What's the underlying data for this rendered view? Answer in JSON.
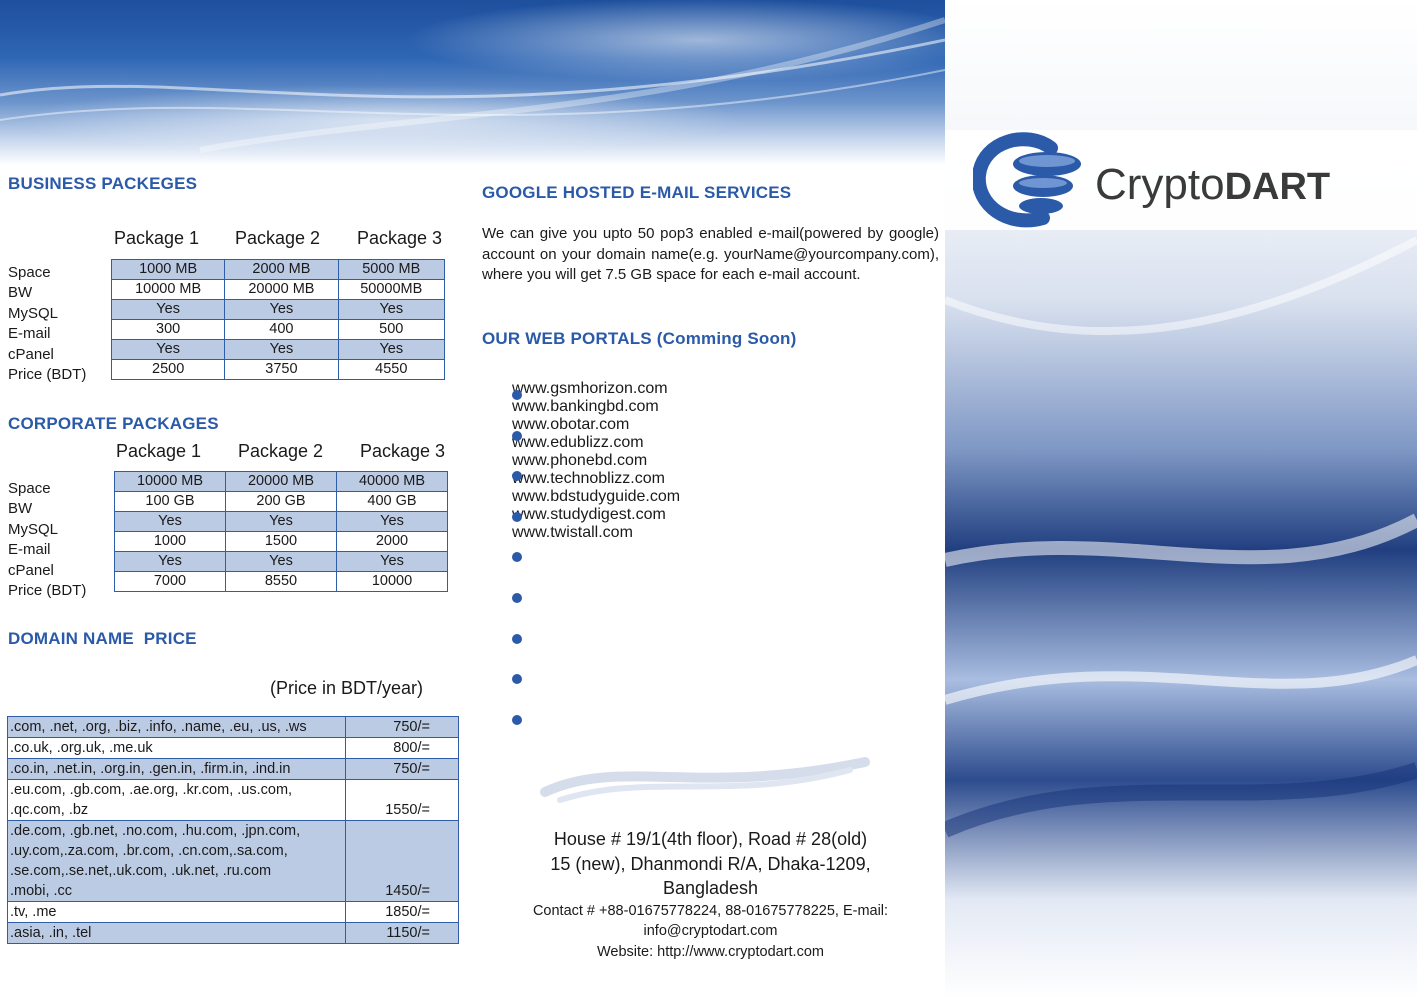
{
  "brand": {
    "name_light": "Crypto",
    "name_bold": "DART",
    "color": "#2a5aa8"
  },
  "business": {
    "title": "BUSINESS PACKEGES",
    "headers": [
      "Package 1",
      "Package 2",
      "Package 3"
    ],
    "row_labels": [
      "Space",
      "BW",
      "MySQL",
      "E-mail",
      "cPanel",
      "Price (BDT)"
    ],
    "rows": [
      [
        "1000 MB",
        "2000 MB",
        "5000 MB"
      ],
      [
        "10000 MB",
        "20000 MB",
        "50000MB"
      ],
      [
        "Yes",
        "Yes",
        "Yes"
      ],
      [
        "300",
        "400",
        "500"
      ],
      [
        "Yes",
        "Yes",
        "Yes"
      ],
      [
        "2500",
        "3750",
        "4550"
      ]
    ]
  },
  "corporate": {
    "title": "CORPORATE PACKAGES",
    "headers": [
      "Package 1",
      "Package 2",
      "Package 3"
    ],
    "row_labels": [
      "Space",
      "BW",
      "MySQL",
      "E-mail",
      "cPanel",
      "Price (BDT)"
    ],
    "rows": [
      [
        "10000 MB",
        "20000 MB",
        "40000 MB"
      ],
      [
        "100 GB",
        "200 GB",
        "400 GB"
      ],
      [
        "Yes",
        "Yes",
        "Yes"
      ],
      [
        "1000",
        "1500",
        "2000"
      ],
      [
        "Yes",
        "Yes",
        "Yes"
      ],
      [
        "7000",
        "8550",
        "10000"
      ]
    ]
  },
  "domain": {
    "title": "DOMAIN NAME  PRICE",
    "unit_note": "(Price in BDT/year)",
    "rows": [
      {
        "lines": [
          ".com, .net, .org, .biz, .info, .name, .eu, .us, .ws"
        ],
        "price": "750/="
      },
      {
        "lines": [
          ".co.uk, .org.uk, .me.uk"
        ],
        "price": "800/="
      },
      {
        "lines": [
          ".co.in, .net.in, .org.in, .gen.in, .firm.in, .ind.in"
        ],
        "price": "750/="
      },
      {
        "lines": [
          ".eu.com, .gb.com, .ae.org, .kr.com, .us.com,",
          ".qc.com, .bz"
        ],
        "price": "1550/="
      },
      {
        "lines": [
          ".de.com, .gb.net, .no.com, .hu.com, .jpn.com,",
          ".uy.com,.za.com, .br.com, .cn.com,.sa.com,",
          ".se.com,.se.net,.uk.com, .uk.net, .ru.com",
          ".mobi, .cc"
        ],
        "price": "1450/="
      },
      {
        "lines": [
          ".tv, .me"
        ],
        "price": "1850/="
      },
      {
        "lines": [
          ".asia, .in, .tel"
        ],
        "price": "1150/="
      }
    ]
  },
  "google": {
    "title": "GOOGLE HOSTED E-MAIL SERVICES",
    "body": "We can give you upto 50 pop3 enabled e-mail(powered by google) account on your domain name(e.g. yourName@yourcompany.com), where you will get 7.5 GB space for each e-mail account."
  },
  "portals": {
    "title": "OUR WEB PORTALS (Comming Soon)",
    "items": [
      "www.gsmhorizon.com",
      "www.bankingbd.com",
      "www.obotar.com",
      "www.edublizz.com",
      "www.phonebd.com",
      "www.technoblizz.com",
      "www.bdstudyguide.com",
      "www.studydigest.com",
      "www.twistall.com"
    ]
  },
  "contact": {
    "address_line1": "House # 19/1(4th floor), Road # 28(old)",
    "address_line2": "15 (new), Dhanmondi R/A, Dhaka-1209,",
    "address_line3": "Bangladesh",
    "contact_line1": "Contact # +88-01675778224, 88-01675778225, E-mail:",
    "contact_line2": "info@cryptodart.com",
    "website": "Website: http://www.cryptodart.com"
  }
}
